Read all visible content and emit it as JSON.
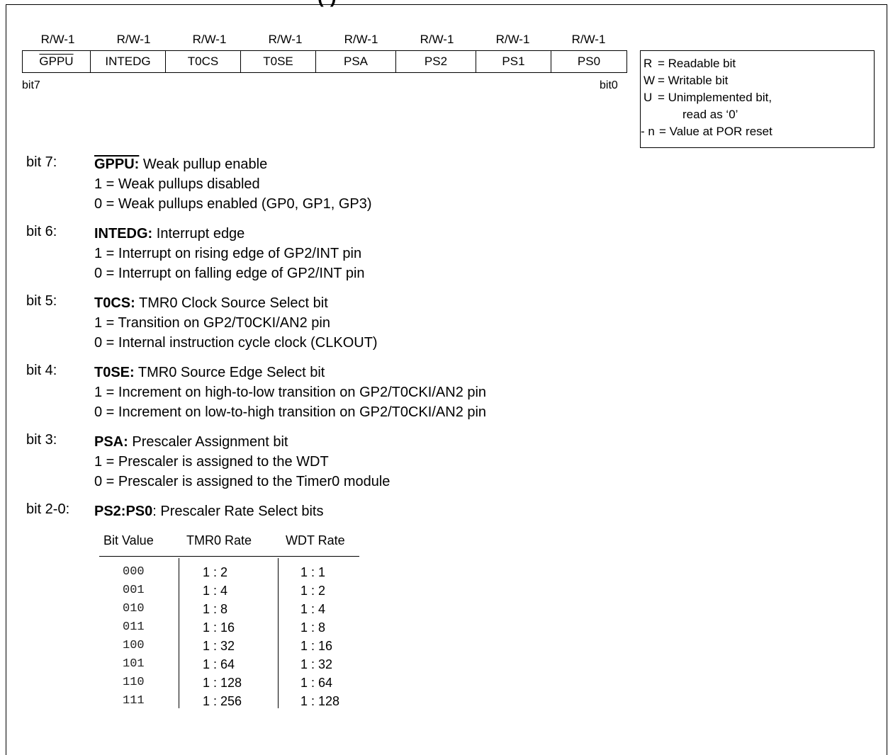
{
  "header": {
    "title_fragment": "(                )"
  },
  "register": {
    "access": [
      "R/W-1",
      "R/W-1",
      "R/W-1",
      "R/W-1",
      "R/W-1",
      "R/W-1",
      "R/W-1",
      "R/W-1"
    ],
    "bits": [
      "GPPU",
      "INTEDG",
      "T0CS",
      "T0SE",
      "PSA",
      "PS2",
      "PS1",
      "PS0"
    ],
    "msb_label": "bit7",
    "lsb_label": "bit0"
  },
  "legend": {
    "r_key": "R",
    "r_val": "= Readable bit",
    "w_key": "W",
    "w_val": "= Writable bit",
    "u_key": "U",
    "u_val": "= Unimplemented bit,",
    "u_cont": "read as ‘0’",
    "n_key": "- n",
    "n_val": "= Value at POR reset"
  },
  "bits": [
    {
      "label": "bit  7:",
      "name": "GPPU:",
      "title": " Weak pullup enable",
      "line1": "1 = Weak pullups disabled",
      "line2": "0 = Weak pullups enabled (GP0, GP1, GP3)"
    },
    {
      "label": "bit  6:",
      "name": "INTEDG:",
      "title": " Interrupt edge",
      "line1": "1 = Interrupt on rising edge of GP2/INT pin",
      "line2": "0 = Interrupt on falling edge of GP2/INT pin"
    },
    {
      "label": "bit  5:",
      "name": "T0CS:",
      "title": " TMR0 Clock Source Select bit",
      "line1": "1 = Transition on GP2/T0CKI/AN2 pin",
      "line2": "0 = Internal instruction cycle clock (CLKOUT)"
    },
    {
      "label": "bit  4:",
      "name": "T0SE:",
      "title": " TMR0 Source Edge Select bit",
      "line1": "1 = Increment on high-to-low transition on GP2/T0CKI/AN2 pin",
      "line2": "0 = Increment on low-to-high transition on GP2/T0CKI/AN2 pin"
    },
    {
      "label": "bit  3:",
      "name": "PSA:",
      "title": " Prescaler Assignment bit",
      "line1": "1 = Prescaler is assigned to the WDT",
      "line2": "0 = Prescaler is assigned to the Timer0 module"
    },
    {
      "label": "bit  2-0:",
      "name": "PS2:PS0",
      "title": ": Prescaler Rate Select bits",
      "line1": "",
      "line2": ""
    }
  ],
  "rate_table": {
    "headers": [
      "Bit Value",
      "TMR0 Rate",
      "WDT Rate"
    ],
    "bit_values": [
      "000",
      "001",
      "010",
      "011",
      "100",
      "101",
      "110",
      "111"
    ],
    "tmr0": [
      "1 : 2",
      "1 : 4",
      "1 : 8",
      "1 : 16",
      "1 : 32",
      "1 : 64",
      "1 : 128",
      "1 : 256"
    ],
    "wdt": [
      "1 : 1",
      "1 : 2",
      "1 : 4",
      "1 : 8",
      "1 : 16",
      "1 : 32",
      "1 : 64",
      "1 : 128"
    ]
  }
}
